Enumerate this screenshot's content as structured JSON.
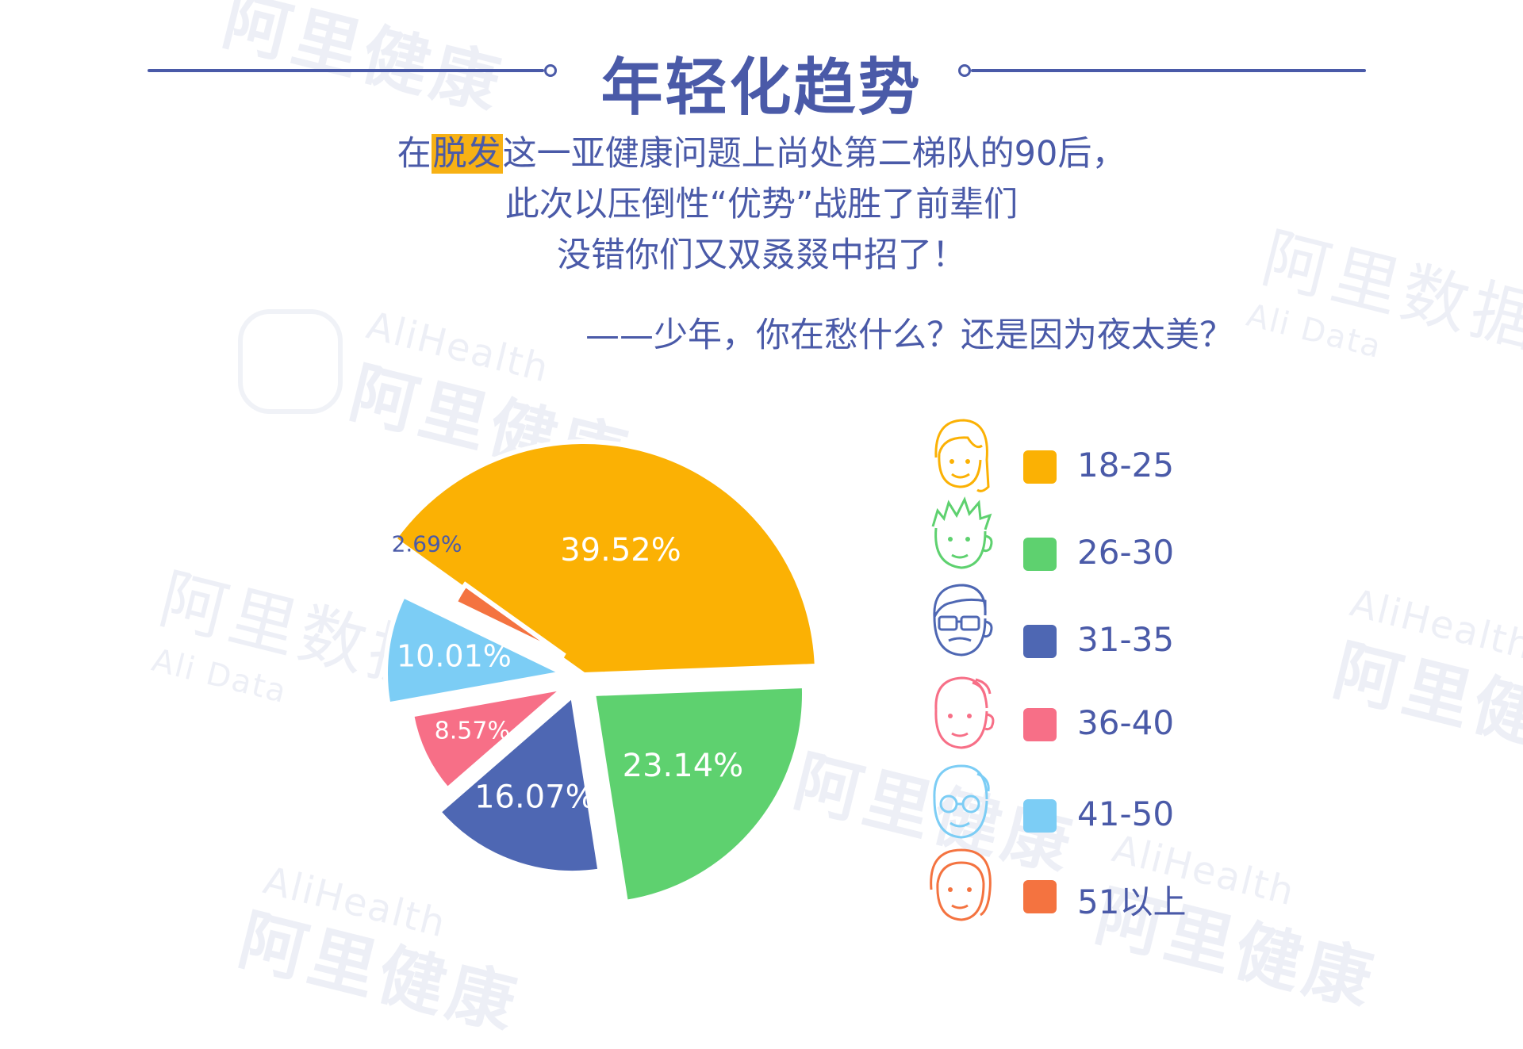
{
  "title": "年轻化趋势",
  "intro": {
    "line1_pre": "在",
    "line1_highlight": "脱发",
    "line1_post": "这一亚健康问题上尚处第二梯队的90后，",
    "line2": "此次以压倒性“优势”战胜了前辈们",
    "line3": "没错你们又双叒叕中招了！"
  },
  "quote": "——少年，你在愁什么？还是因为夜太美？",
  "watermarks": {
    "cn_health": "阿里健康",
    "en_health": "AliHealth",
    "cn_data": "阿里数据",
    "en_data": "Ali Data"
  },
  "chart_data": {
    "type": "pie",
    "categories": [
      "18-25",
      "26-30",
      "31-35",
      "36-40",
      "41-50",
      "51以上"
    ],
    "values": [
      39.52,
      23.14,
      16.07,
      8.57,
      10.01,
      2.69
    ],
    "value_labels": [
      "39.52%",
      "23.14%",
      "16.07%",
      "8.57%",
      "10.01%",
      "2.69%"
    ],
    "colors": [
      "#fbb104",
      "#5ed16f",
      "#4e67b3",
      "#f76f87",
      "#7ccdf5",
      "#f47340"
    ],
    "legend_position": "right",
    "exploded": true
  },
  "legend": [
    {
      "label": "18-25",
      "color": "#fbb104",
      "face": "young-woman-face-icon"
    },
    {
      "label": "26-30",
      "color": "#5ed16f",
      "face": "spiky-hair-man-face-icon"
    },
    {
      "label": "31-35",
      "color": "#4e67b3",
      "face": "glasses-man-face-icon"
    },
    {
      "label": "36-40",
      "color": "#f76f87",
      "face": "balding-man-face-icon"
    },
    {
      "label": "41-50",
      "color": "#7ccdf5",
      "face": "bald-glasses-man-face-icon"
    },
    {
      "label": "51以上",
      "color": "#f47340",
      "face": "older-woman-face-icon"
    }
  ]
}
